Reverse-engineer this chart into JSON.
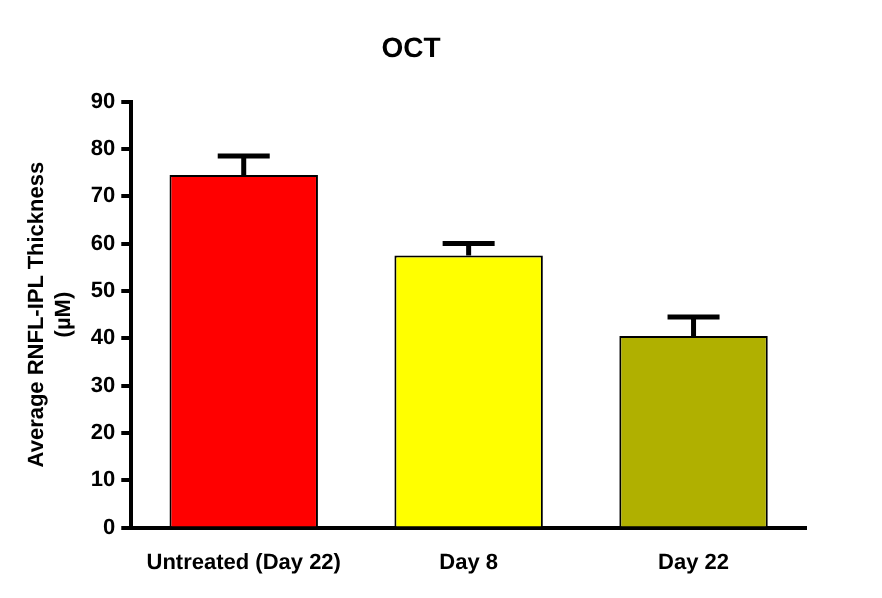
{
  "chart_data": {
    "type": "bar",
    "title": "OCT",
    "ylabel": "Average RNFL-IPL Thickness\n(µM)",
    "categories": [
      "Untreated (Day 22)",
      "Day 8",
      "Day 22"
    ],
    "values": [
      74.5,
      57.5,
      40.5
    ],
    "errors": [
      4,
      2.5,
      4
    ],
    "colors": [
      "#ff0000",
      "#ffff00",
      "#b0b000"
    ],
    "ylim": [
      0,
      90
    ],
    "yticks": [
      0,
      10,
      20,
      30,
      40,
      50,
      60,
      70,
      80,
      90
    ],
    "grid": false,
    "legend": false
  }
}
